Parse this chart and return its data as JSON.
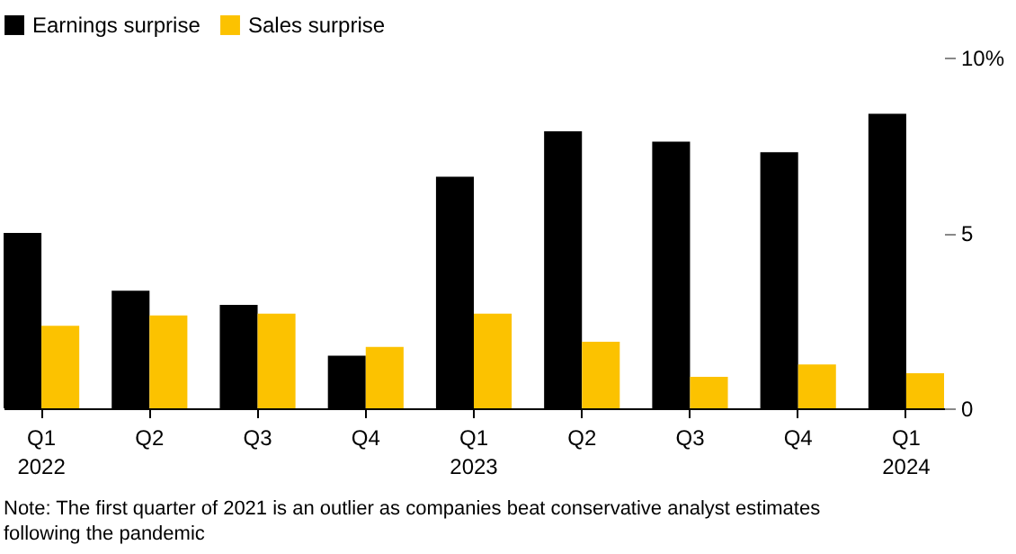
{
  "chart_data": {
    "type": "bar",
    "categories": [
      "Q1\n2022",
      "Q2",
      "Q3",
      "Q4",
      "Q1\n2023",
      "Q2",
      "Q3",
      "Q4",
      "Q1\n2024"
    ],
    "series": [
      {
        "name": "Earnings surprise",
        "color": "#000000",
        "values": [
          5.0,
          3.35,
          2.95,
          1.5,
          6.6,
          7.9,
          7.6,
          7.3,
          8.4
        ]
      },
      {
        "name": "Sales surprise",
        "color": "#fcc200",
        "values": [
          2.35,
          2.65,
          2.7,
          1.75,
          2.7,
          1.9,
          0.9,
          1.25,
          1.0
        ]
      }
    ],
    "ylim": [
      0,
      10
    ],
    "yticks": [
      0,
      5,
      {
        "value": 10,
        "label": "10%"
      }
    ],
    "grid": false,
    "legend": "top left",
    "annotations": [
      "Note: The first quarter of 2021 is an outlier as companies beat conservative analyst estimates following the pandemic"
    ]
  }
}
